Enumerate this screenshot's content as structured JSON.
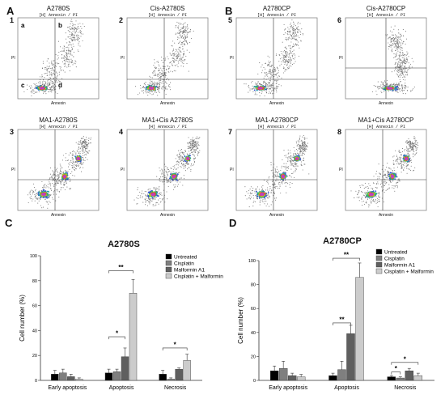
{
  "panels": {
    "A": "A",
    "B": "B",
    "C": "C",
    "D": "D"
  },
  "flow": {
    "quadrants": [
      "a",
      "b",
      "c",
      "d"
    ],
    "subtitle": "[H] Annexin / PI",
    "xlabel": "Annexin",
    "ylabel": "PI",
    "plots": [
      {
        "num": "1",
        "title": "A2780S",
        "dense": "q3"
      },
      {
        "num": "2",
        "title": "Cis-A2780S",
        "dense": "q3"
      },
      {
        "num": "3",
        "title": "MA1-A2780S",
        "dense": "diag"
      },
      {
        "num": "4",
        "title": "MA1+Cis A2780S",
        "dense": "diag"
      },
      {
        "num": "5",
        "title": "A2780CP",
        "dense": "q3"
      },
      {
        "num": "6",
        "title": "Cis-A2780CP",
        "dense": "q4"
      },
      {
        "num": "7",
        "title": "MA1-A2780CP",
        "dense": "diag"
      },
      {
        "num": "8",
        "title": "MA1+Cis A2780CP",
        "dense": "diag"
      }
    ]
  },
  "chart_data": [
    {
      "type": "bar",
      "title": "A2780S",
      "ylabel": "Cell number (%)",
      "ylim": [
        0,
        100
      ],
      "yticks": [
        0,
        20,
        40,
        60,
        80,
        100
      ],
      "categories": [
        "Early apoptosis",
        "Apoptosis",
        "Necrosis"
      ],
      "colors": [
        "#000000",
        "#7f7f7f",
        "#5f5f5f",
        "#cccccc"
      ],
      "series": [
        {
          "name": "Untreated",
          "values": [
            5,
            6,
            5
          ],
          "errors": [
            3,
            3,
            3
          ]
        },
        {
          "name": "Cisplatin",
          "values": [
            6,
            7,
            1
          ],
          "errors": [
            3,
            2,
            1
          ]
        },
        {
          "name": "Malformin A1",
          "values": [
            3,
            19,
            9
          ],
          "errors": [
            2,
            7,
            1
          ]
        },
        {
          "name": "Cisplatin + Malformin",
          "values": [
            1,
            70,
            16
          ],
          "errors": [
            1,
            11,
            5
          ]
        }
      ],
      "significance": [
        {
          "label": "**",
          "category": 1,
          "from": 0,
          "to": 3,
          "y": 88
        },
        {
          "label": "*",
          "category": 1,
          "from": 0,
          "to": 2,
          "y": 35
        },
        {
          "label": "*",
          "category": 2,
          "from": 0,
          "to": 3,
          "y": 26
        }
      ]
    },
    {
      "type": "bar",
      "title": "A2780CP",
      "ylabel": "Cell number (%)",
      "ylim": [
        0,
        100
      ],
      "yticks": [
        0,
        20,
        40,
        60,
        80,
        100
      ],
      "categories": [
        "Early apoptosis",
        "Apoptosis",
        "Necrosis"
      ],
      "colors": [
        "#000000",
        "#7f7f7f",
        "#5f5f5f",
        "#cccccc"
      ],
      "series": [
        {
          "name": "Untreated",
          "values": [
            8,
            4,
            3
          ],
          "errors": [
            4,
            2,
            1
          ]
        },
        {
          "name": "Cisplatin",
          "values": [
            10,
            9,
            2
          ],
          "errors": [
            6,
            7,
            1
          ]
        },
        {
          "name": "Malformin A1",
          "values": [
            4,
            39,
            8
          ],
          "errors": [
            2,
            7,
            2
          ]
        },
        {
          "name": "Cisplatin + Malformin",
          "values": [
            3,
            86,
            4
          ],
          "errors": [
            2,
            12,
            2
          ]
        }
      ],
      "significance": [
        {
          "label": "**",
          "category": 1,
          "from": 0,
          "to": 3,
          "y": 102
        },
        {
          "label": "**",
          "category": 1,
          "from": 0,
          "to": 2,
          "y": 48
        },
        {
          "label": "*",
          "category": 2,
          "from": 0,
          "to": 3,
          "y": 15
        },
        {
          "label": "*",
          "category": 2,
          "from": 0,
          "to": 1,
          "y": 7
        }
      ]
    }
  ]
}
